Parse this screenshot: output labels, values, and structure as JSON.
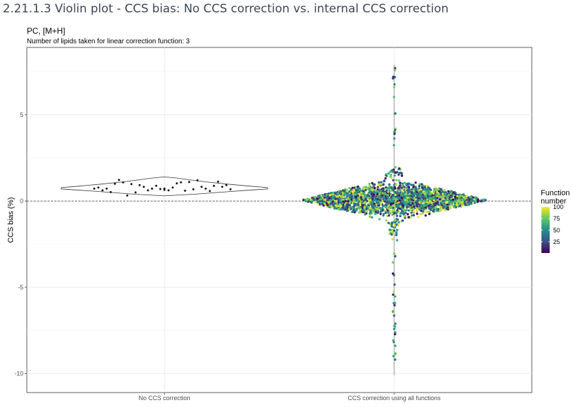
{
  "page": {
    "section_title": "2.21.1.3 Violin plot - CCS bias: No CCS correction vs. internal CCS correction"
  },
  "chart_data": {
    "type": "violin",
    "title": "PC, [M+H]",
    "subtitle": "Number of lipids taken for linear correction function: 3",
    "xlabel": "",
    "ylabel": "CCS bias (%)",
    "categories": [
      "No CCS correction",
      "CCS correction using all functions"
    ],
    "ylim": [
      -11.1,
      8.9
    ],
    "yticks": [
      -10,
      -5,
      0,
      5
    ],
    "reference_line": {
      "y": 0,
      "style": "dashed"
    },
    "grid": true,
    "legend": {
      "title": "Function number",
      "type": "colorbar",
      "position": "right",
      "range": [
        1,
        100
      ],
      "ticks": [
        25,
        50,
        75,
        100
      ],
      "colors": [
        "#440154",
        "#3b528b",
        "#21918c",
        "#5ec962",
        "#fde725"
      ]
    },
    "series": [
      {
        "category": "No CCS correction",
        "violin_outline": true,
        "points": [
          0.72,
          0.65,
          0.7,
          0.62,
          0.88,
          0.78,
          0.72,
          1.02,
          0.62,
          1.08,
          0.82,
          0.6,
          0.92,
          1.1,
          0.5,
          0.68,
          0.98,
          1.2,
          0.32,
          0.82,
          1.08,
          0.72,
          1.22,
          0.58,
          1.0,
          0.88,
          0.52,
          1.12,
          0.72,
          0.82,
          0.62,
          0.92,
          0.78,
          0.68,
          0.72
        ]
      },
      {
        "category": "CCS correction using all functions",
        "color_by": "Function number",
        "summary": {
          "min": -10.1,
          "max": 7.9,
          "median": 0.2
        },
        "points": []
      }
    ]
  }
}
